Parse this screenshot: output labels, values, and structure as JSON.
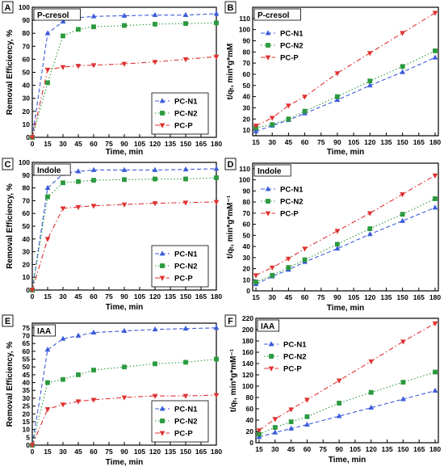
{
  "chart_data": [
    {
      "panel_letter": "A",
      "type": "line",
      "box_label": "P-cresol",
      "xlabel": "Time, min",
      "ylabel": "Removal Efficiency, %",
      "xticks": [
        0,
        15,
        30,
        45,
        60,
        75,
        90,
        105,
        120,
        135,
        150,
        165,
        180
      ],
      "yticks": [
        0,
        10,
        20,
        30,
        40,
        50,
        60,
        70,
        80,
        90,
        100
      ],
      "xlim": [
        0,
        180
      ],
      "ylim": [
        0,
        100
      ],
      "legend": "bottom-right",
      "series": [
        {
          "name": "PC-N1",
          "color": "#3b5bdb",
          "marker": "triangle-up",
          "style": "dashed",
          "x": [
            0,
            15,
            30,
            45,
            60,
            90,
            120,
            150,
            180
          ],
          "y": [
            0,
            80,
            89,
            92,
            93,
            93.5,
            94,
            94,
            95
          ]
        },
        {
          "name": "PC-N2",
          "color": "#2b9a3e",
          "marker": "square",
          "style": "dotted",
          "x": [
            0,
            15,
            30,
            45,
            60,
            90,
            120,
            150,
            180
          ],
          "y": [
            0,
            42,
            78,
            83,
            85,
            86,
            87,
            87.5,
            88
          ]
        },
        {
          "name": "PC-P",
          "color": "#e03131",
          "marker": "triangle-down",
          "style": "dashdot",
          "x": [
            0,
            15,
            30,
            45,
            60,
            90,
            120,
            150,
            180
          ],
          "y": [
            0,
            52,
            54,
            55,
            55.5,
            56.5,
            58,
            60,
            62
          ]
        }
      ]
    },
    {
      "panel_letter": "B",
      "type": "line",
      "box_label": "P-cresol",
      "xlabel": "Time, min",
      "ylabel": "t/qₜ, min*g*mM",
      "xticks": [
        15,
        30,
        45,
        60,
        75,
        90,
        105,
        120,
        135,
        150,
        165,
        180
      ],
      "yticks": [
        10,
        20,
        30,
        40,
        50,
        60,
        70,
        80,
        90,
        100,
        110
      ],
      "xlim": [
        12,
        183
      ],
      "ylim": [
        5,
        120
      ],
      "legend": "top-left",
      "series": [
        {
          "name": "PC-N1",
          "color": "#3b5bdb",
          "marker": "triangle-up",
          "style": "dashed",
          "x": [
            15,
            30,
            45,
            60,
            90,
            120,
            150,
            180
          ],
          "y": [
            9,
            14,
            19,
            25,
            37,
            50,
            62,
            75
          ]
        },
        {
          "name": "PC-N2",
          "color": "#2b9a3e",
          "marker": "square",
          "style": "dotted",
          "x": [
            15,
            30,
            45,
            60,
            90,
            120,
            150,
            180
          ],
          "y": [
            12,
            15,
            20,
            27,
            40,
            54,
            67,
            81
          ]
        },
        {
          "name": "PC-P",
          "color": "#e03131",
          "marker": "triangle-down",
          "style": "dashdot",
          "x": [
            15,
            30,
            45,
            60,
            90,
            120,
            150,
            180
          ],
          "y": [
            14,
            21,
            32,
            40,
            61,
            79,
            97,
            115
          ]
        }
      ]
    },
    {
      "panel_letter": "C",
      "type": "line",
      "box_label": "Indole",
      "xlabel": "Time, min",
      "ylabel": "Removal Efficiency, %",
      "xticks": [
        0,
        15,
        30,
        45,
        60,
        75,
        90,
        105,
        120,
        135,
        150,
        165,
        180
      ],
      "yticks": [
        0,
        10,
        20,
        30,
        40,
        50,
        60,
        70,
        80,
        90,
        100
      ],
      "xlim": [
        0,
        180
      ],
      "ylim": [
        0,
        100
      ],
      "legend": "bottom-right",
      "series": [
        {
          "name": "PC-N1",
          "color": "#3b5bdb",
          "marker": "triangle-up",
          "style": "dashed",
          "x": [
            0,
            15,
            30,
            45,
            60,
            90,
            120,
            150,
            180
          ],
          "y": [
            0,
            80,
            91,
            93,
            94,
            94,
            94,
            94.5,
            95
          ]
        },
        {
          "name": "PC-N2",
          "color": "#2b9a3e",
          "marker": "square",
          "style": "dotted",
          "x": [
            0,
            15,
            30,
            45,
            60,
            90,
            120,
            150,
            180
          ],
          "y": [
            0,
            73,
            84,
            85,
            86,
            86.5,
            87,
            87,
            88
          ]
        },
        {
          "name": "PC-P",
          "color": "#e03131",
          "marker": "triangle-down",
          "style": "dashdot",
          "x": [
            0,
            15,
            30,
            45,
            60,
            90,
            120,
            150,
            180
          ],
          "y": [
            0,
            40,
            64,
            65,
            66,
            67,
            68,
            68.5,
            69
          ]
        }
      ]
    },
    {
      "panel_letter": "D",
      "type": "line",
      "box_label": "Indole",
      "xlabel": "Time, min",
      "ylabel": "t/qₜ, min*g*mM⁻¹",
      "xticks": [
        15,
        30,
        45,
        60,
        75,
        90,
        105,
        120,
        135,
        150,
        165,
        180
      ],
      "yticks": [
        0,
        10,
        20,
        30,
        40,
        50,
        60,
        70,
        80,
        90,
        100,
        110
      ],
      "xlim": [
        12,
        183
      ],
      "ylim": [
        0,
        115
      ],
      "legend": "top-left",
      "series": [
        {
          "name": "PC-N1",
          "color": "#3b5bdb",
          "marker": "triangle-up",
          "style": "dashed",
          "x": [
            15,
            30,
            45,
            60,
            90,
            120,
            150,
            180
          ],
          "y": [
            6,
            13,
            19,
            26,
            38,
            51,
            63,
            75
          ]
        },
        {
          "name": "PC-N2",
          "color": "#2b9a3e",
          "marker": "square",
          "style": "dotted",
          "x": [
            15,
            30,
            45,
            60,
            90,
            120,
            150,
            180
          ],
          "y": [
            8,
            14,
            21,
            28,
            42,
            56,
            69,
            83
          ]
        },
        {
          "name": "PC-P",
          "color": "#e03131",
          "marker": "triangle-down",
          "style": "dashdot",
          "x": [
            15,
            30,
            45,
            60,
            90,
            120,
            150,
            180
          ],
          "y": [
            14,
            21,
            29,
            38,
            54,
            70,
            87,
            104
          ]
        }
      ]
    },
    {
      "panel_letter": "E",
      "type": "line",
      "box_label": "IAA",
      "xlabel": "Time, min",
      "ylabel": "Removal Efficiency, %",
      "xticks": [
        0,
        15,
        30,
        45,
        60,
        75,
        90,
        105,
        120,
        135,
        150,
        165,
        180
      ],
      "yticks": [
        0,
        5,
        10,
        15,
        20,
        25,
        30,
        35,
        40,
        45,
        50,
        55,
        60,
        65,
        70,
        75
      ],
      "xlim": [
        0,
        180
      ],
      "ylim": [
        0,
        78
      ],
      "legend": "bottom-right",
      "series": [
        {
          "name": "PC-N1",
          "color": "#3b5bdb",
          "marker": "triangle-up",
          "style": "dashed",
          "x": [
            0,
            15,
            30,
            45,
            60,
            90,
            120,
            150,
            180
          ],
          "y": [
            0,
            61,
            68,
            70,
            72,
            73,
            74,
            74.5,
            75
          ]
        },
        {
          "name": "PC-N2",
          "color": "#2b9a3e",
          "marker": "square",
          "style": "dotted",
          "x": [
            0,
            15,
            30,
            45,
            60,
            90,
            120,
            150,
            180
          ],
          "y": [
            0,
            40,
            42,
            45,
            48,
            50,
            52,
            53,
            55
          ]
        },
        {
          "name": "PC-P",
          "color": "#e03131",
          "marker": "triangle-down",
          "style": "dashdot",
          "x": [
            0,
            15,
            30,
            45,
            60,
            90,
            120,
            150,
            180
          ],
          "y": [
            0,
            23,
            26,
            28,
            29,
            30.5,
            31.5,
            31.5,
            32
          ]
        }
      ]
    },
    {
      "panel_letter": "F",
      "type": "line",
      "box_label": "IAA",
      "xlabel": "Time, min",
      "ylabel": "t/qₜ, min*g*mM⁻¹",
      "xticks": [
        15,
        30,
        45,
        60,
        75,
        90,
        105,
        120,
        135,
        150,
        165,
        180
      ],
      "yticks": [
        0,
        20,
        40,
        60,
        80,
        100,
        120,
        140,
        160,
        180,
        200,
        220
      ],
      "xlim": [
        12,
        183
      ],
      "ylim": [
        0,
        220
      ],
      "legend": "top-left",
      "series": [
        {
          "name": "PC-N1",
          "color": "#3b5bdb",
          "marker": "triangle-up",
          "style": "dashed",
          "x": [
            15,
            30,
            45,
            60,
            90,
            120,
            150,
            180
          ],
          "y": [
            10,
            18,
            25,
            32,
            47,
            62,
            77,
            92
          ]
        },
        {
          "name": "PC-N2",
          "color": "#2b9a3e",
          "marker": "square",
          "style": "dotted",
          "x": [
            15,
            30,
            45,
            60,
            90,
            120,
            150,
            180
          ],
          "y": [
            15,
            27,
            37,
            46,
            70,
            89,
            107,
            125
          ]
        },
        {
          "name": "PC-P",
          "color": "#e03131",
          "marker": "triangle-down",
          "style": "dashdot",
          "x": [
            15,
            30,
            45,
            60,
            90,
            120,
            150,
            180
          ],
          "y": [
            22,
            42,
            59,
            76,
            110,
            144,
            179,
            211
          ]
        }
      ]
    }
  ]
}
